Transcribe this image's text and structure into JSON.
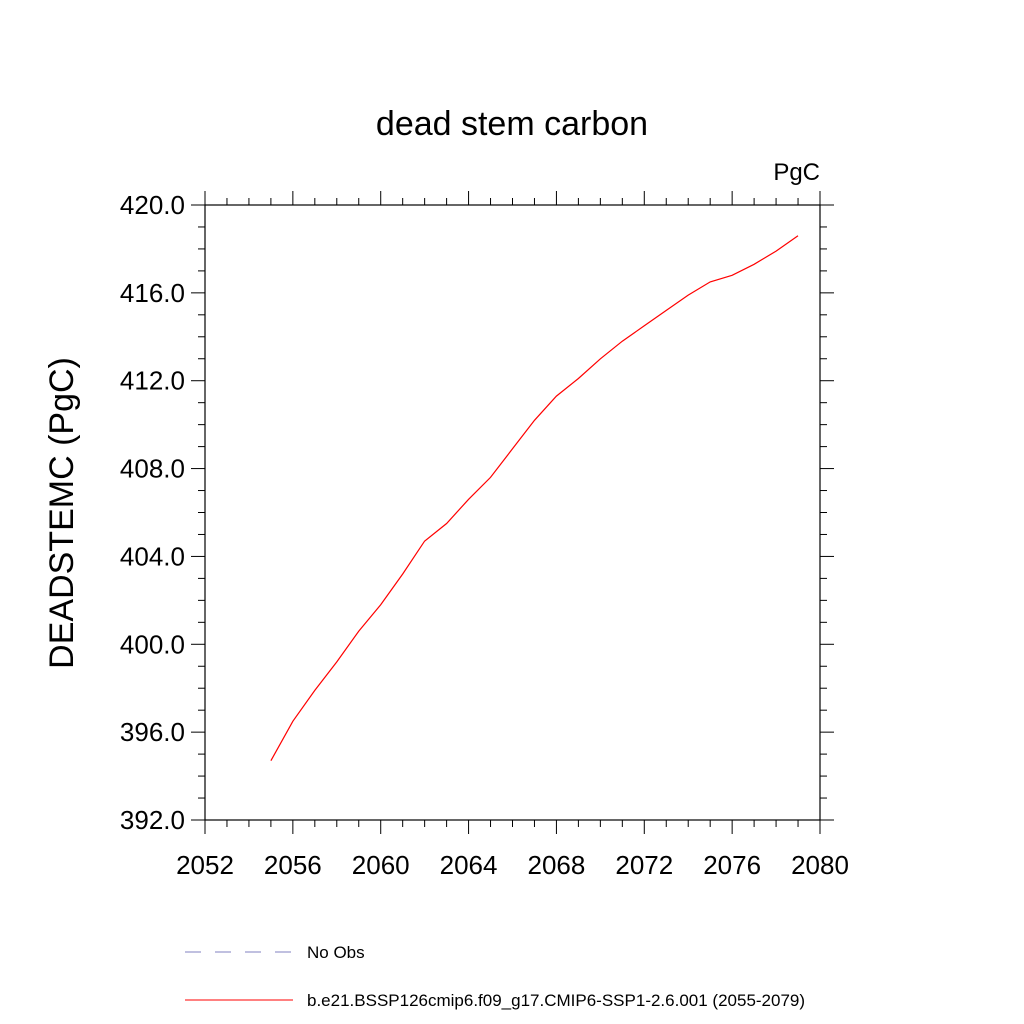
{
  "chart_data": {
    "type": "line",
    "title": "dead stem carbon",
    "units_label": "PgC",
    "xlabel": "",
    "ylabel": "DEADSTEMC  (PgC)",
    "xlim": [
      2052,
      2080
    ],
    "ylim": [
      392,
      420
    ],
    "x_ticks": [
      2052,
      2056,
      2060,
      2064,
      2068,
      2072,
      2076,
      2080
    ],
    "y_ticks": [
      "392.0",
      "396.0",
      "400.0",
      "404.0",
      "408.0",
      "412.0",
      "416.0",
      "420.0"
    ],
    "grid": false,
    "legend_position": "bottom",
    "series": [
      {
        "name": "b.e21.BSSP126cmip6.f09_g17.CMIP6-SSP1-2.6.001 (2055-2079)",
        "color": "#ff0000",
        "style": "solid",
        "x": [
          2055,
          2056,
          2057,
          2058,
          2059,
          2060,
          2061,
          2062,
          2063,
          2064,
          2065,
          2066,
          2067,
          2068,
          2069,
          2070,
          2071,
          2072,
          2073,
          2074,
          2075,
          2076,
          2077,
          2078,
          2079
        ],
        "y": [
          394.7,
          396.5,
          397.9,
          399.2,
          400.6,
          401.8,
          403.2,
          404.7,
          405.5,
          406.6,
          407.6,
          408.9,
          410.2,
          411.3,
          412.1,
          413.0,
          413.8,
          414.5,
          415.2,
          415.9,
          416.5,
          416.8,
          417.3,
          417.9,
          418.6
        ]
      },
      {
        "name": "No Obs",
        "color": "#8080c0",
        "style": "dashed",
        "x": [],
        "y": []
      }
    ]
  }
}
